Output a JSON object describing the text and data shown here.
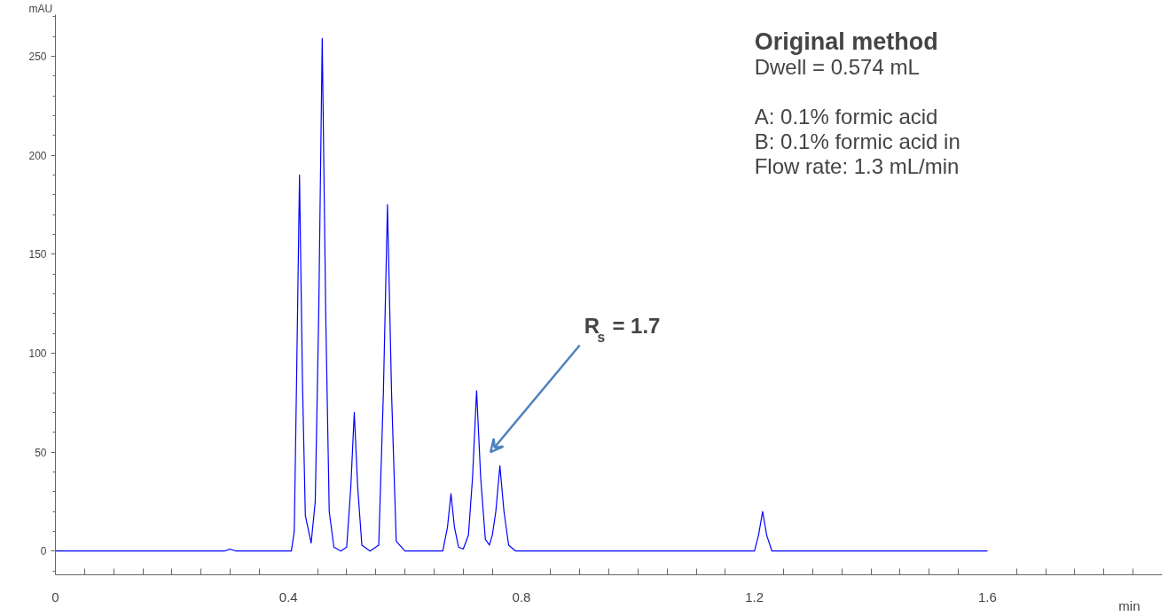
{
  "chart_data": {
    "type": "line",
    "title": "Original method",
    "xlabel": "min",
    "ylabel": "mAU",
    "x": [
      0,
      0.2,
      0.29,
      0.3,
      0.31,
      0.405,
      0.41,
      0.414,
      0.419,
      0.424,
      0.429,
      0.439,
      0.446,
      0.452,
      0.458,
      0.464,
      0.47,
      0.478,
      0.49,
      0.5,
      0.507,
      0.513,
      0.519,
      0.526,
      0.54,
      0.555,
      0.563,
      0.57,
      0.577,
      0.585,
      0.6,
      0.665,
      0.673,
      0.679,
      0.685,
      0.692,
      0.7,
      0.709,
      0.716,
      0.723,
      0.73,
      0.738,
      0.745,
      0.75,
      0.756,
      0.763,
      0.77,
      0.778,
      0.79,
      1.2,
      1.207,
      1.214,
      1.221,
      1.23,
      1.6
    ],
    "series": [
      {
        "color": "#0000ff",
        "values": [
          0,
          0,
          0,
          1,
          0,
          0,
          10,
          87,
          190,
          87,
          18,
          4,
          25,
          120,
          259,
          120,
          20,
          2,
          0,
          2,
          32,
          70,
          32,
          3,
          0,
          3,
          80,
          175,
          80,
          5,
          0,
          0,
          12,
          29,
          12,
          2,
          1,
          8,
          37,
          81,
          37,
          6,
          3,
          8,
          20,
          43,
          20,
          3,
          0,
          0,
          8,
          20,
          8,
          0,
          0
        ]
      }
    ],
    "xlim": [
      0,
      1.9
    ],
    "ylim": [
      -12,
      271
    ],
    "xticks": [
      0,
      {
        "value": 0.05,
        "label": null
      },
      {
        "value": 0.1,
        "label": null
      },
      {
        "value": 0.15,
        "label": null
      },
      {
        "value": 0.2,
        "label": null
      },
      {
        "value": 0.25,
        "label": null
      },
      {
        "value": 0.3,
        "label": null
      },
      {
        "value": 0.35,
        "label": null
      },
      0.4,
      {
        "value": 0.45,
        "label": null
      },
      {
        "value": 0.5,
        "label": null
      },
      {
        "value": 0.55,
        "label": null
      },
      {
        "value": 0.6,
        "label": null
      },
      {
        "value": 0.65,
        "label": null
      },
      {
        "value": 0.7,
        "label": null
      },
      {
        "value": 0.75,
        "label": null
      },
      0.8,
      {
        "value": 0.85,
        "label": null
      },
      {
        "value": 0.9,
        "label": null
      },
      {
        "value": 0.95,
        "label": null
      },
      {
        "value": 1.0,
        "label": null
      },
      {
        "value": 1.05,
        "label": null
      },
      {
        "value": 1.1,
        "label": null
      },
      {
        "value": 1.15,
        "label": null
      },
      1.2,
      {
        "value": 1.25,
        "label": null
      },
      {
        "value": 1.3,
        "label": null
      },
      {
        "value": 1.35,
        "label": null
      },
      {
        "value": 1.4,
        "label": null
      },
      {
        "value": 1.45,
        "label": null
      },
      {
        "value": 1.5,
        "label": null
      },
      {
        "value": 1.55,
        "label": null
      },
      1.6,
      {
        "value": 1.65,
        "label": null
      },
      {
        "value": 1.7,
        "label": null
      },
      {
        "value": 1.75,
        "label": null
      },
      {
        "value": 1.8,
        "label": null
      },
      {
        "value": 1.85,
        "label": null
      }
    ],
    "yticks": [
      {
        "value": -10,
        "label": null
      },
      0,
      {
        "value": 10,
        "label": null
      },
      {
        "value": 20,
        "label": null
      },
      {
        "value": 30,
        "label": null
      },
      {
        "value": 40,
        "label": null
      },
      50,
      {
        "value": 60,
        "label": null
      },
      {
        "value": 70,
        "label": null
      },
      {
        "value": 80,
        "label": null
      },
      {
        "value": 90,
        "label": null
      },
      100,
      {
        "value": 110,
        "label": null
      },
      {
        "value": 120,
        "label": null
      },
      {
        "value": 130,
        "label": null
      },
      {
        "value": 140,
        "label": null
      },
      150,
      {
        "value": 160,
        "label": null
      },
      {
        "value": 170,
        "label": null
      },
      {
        "value": 180,
        "label": null
      },
      {
        "value": 190,
        "label": null
      },
      200,
      {
        "value": 210,
        "label": null
      },
      {
        "value": 220,
        "label": null
      },
      {
        "value": 230,
        "label": null
      },
      {
        "value": 240,
        "label": null
      },
      250,
      {
        "value": 260,
        "label": null
      },
      {
        "value": 270,
        "label": null
      }
    ],
    "annotations": [
      "R$_{s}$ = 1.7",
      "Dwell = 0.574 mL",
      "A: 0.1% formic acid",
      "B: 0.1% formic acid in",
      "Flow rate: 1.3 mL/min"
    ],
    "grid": false,
    "marker": "none",
    "line_style": "solid"
  }
}
